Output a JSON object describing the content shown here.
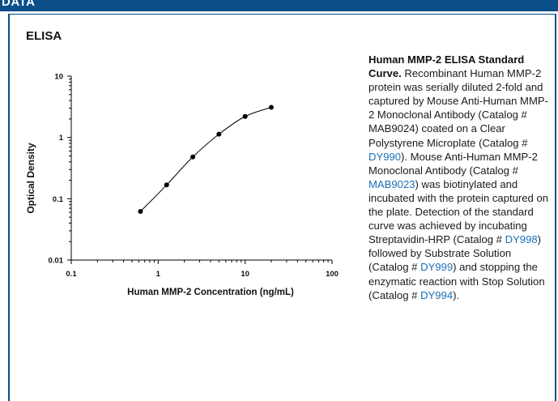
{
  "header": {
    "title": "DATA"
  },
  "section": {
    "title": "ELISA"
  },
  "caption": {
    "heading": "Human MMP-2 ELISA Standard Curve.",
    "t1": " Recombinant Human MMP-2 protein was serially diluted 2-fold and captured by Mouse Anti-Human MMP-2 Monoclonal Antibody (Catalog # MAB9024) coated on a Clear Polystyrene Microplate (Catalog # ",
    "l1": "DY990",
    "t2": "). Mouse Anti-Human MMP-2 Monoclonal Antibody (Catalog # ",
    "l2": "MAB9023",
    "t3": ") was biotinylated and incubated with the protein captured on the plate. Detection of the standard curve was achieved by incubating Streptavidin-HRP (Catalog # ",
    "l3": "DY998",
    "t4": ") followed by Substrate Solution (Catalog # ",
    "l4": "DY999",
    "t5": ") and stopping the enzymatic reaction with Stop Solution (Catalog # ",
    "l5": "DY994",
    "t6": ")."
  },
  "chart_data": {
    "type": "line",
    "title": "",
    "xlabel": "Human MMP-2 Concentration (ng/mL)",
    "ylabel": "Optical Density",
    "xscale": "log",
    "yscale": "log",
    "xlim": [
      0.1,
      100
    ],
    "ylim": [
      0.01,
      10
    ],
    "x_ticks": [
      "0.1",
      "1",
      "10",
      "100"
    ],
    "y_ticks": [
      "0.01",
      "0.1",
      "1",
      "10"
    ],
    "grid": false,
    "series": [
      {
        "x": [
          0.625,
          1.25,
          2.5,
          5,
          10,
          20
        ],
        "y": [
          0.062,
          0.168,
          0.48,
          1.13,
          2.2,
          3.1
        ]
      }
    ]
  }
}
